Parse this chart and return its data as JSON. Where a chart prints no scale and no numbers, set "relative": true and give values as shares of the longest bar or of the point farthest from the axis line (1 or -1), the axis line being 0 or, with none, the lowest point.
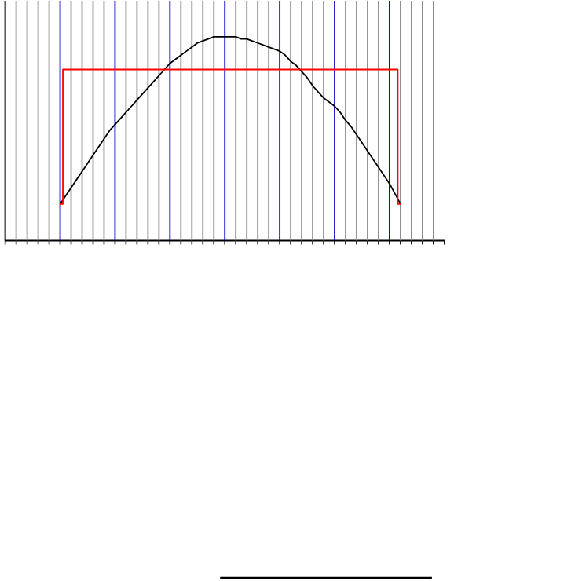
{
  "chart_data": {
    "type": "line",
    "relative": true,
    "grid": "x",
    "categories": [
      null,
      null,
      null,
      null,
      null,
      null,
      null,
      null,
      null,
      null,
      null,
      null,
      null,
      null,
      null,
      null,
      null,
      null,
      null,
      null,
      null,
      null,
      null,
      null,
      null,
      null,
      null,
      null,
      null,
      null,
      null,
      null,
      null,
      null,
      null,
      null,
      null,
      null,
      null,
      null,
      null,
      null,
      null,
      null,
      null,
      null,
      null,
      null,
      null,
      null,
      null,
      null,
      null,
      null,
      null,
      null,
      null,
      null,
      null,
      null,
      null,
      null,
      null
    ],
    "series": [
      {
        "color": "#000000",
        "values": [
          0.18,
          0.22,
          0.26,
          0.3,
          0.34,
          0.38,
          0.42,
          0.46,
          0.5,
          0.54,
          0.57,
          0.6,
          0.63,
          0.66,
          0.69,
          0.72,
          0.75,
          0.78,
          0.81,
          0.84,
          0.87,
          0.89,
          0.91,
          0.93,
          0.95,
          0.97,
          0.98,
          0.99,
          1,
          1,
          1,
          1,
          1,
          0.99,
          0.99,
          0.98,
          0.97,
          0.96,
          0.95,
          0.94,
          0.93,
          0.91,
          0.88,
          0.86,
          0.83,
          0.8,
          0.76,
          0.73,
          0.7,
          0.68,
          0.66,
          0.63,
          0.59,
          0.56,
          0.52,
          0.48,
          0.44,
          0.4,
          0.36,
          0.32,
          0.28,
          0.23,
          0.18
        ]
      },
      {
        "color": "#ff0000",
        "type": "step",
        "values": [
          0.18,
          0.84,
          0.84,
          0.84,
          0.84,
          0.84,
          0.84,
          0.84,
          0.84,
          0.84,
          0.84,
          0.84,
          0.84,
          0.84,
          0.84,
          0.84,
          0.84,
          0.84,
          0.84,
          0.84,
          0.84,
          0.84,
          0.84,
          0.84,
          0.84,
          0.84,
          0.84,
          0.84,
          0.84,
          0.84,
          0.84,
          0.84,
          0.84,
          0.84,
          0.84,
          0.84,
          0.84,
          0.84,
          0.84,
          0.84,
          0.84,
          0.84,
          0.84,
          0.84,
          0.84,
          0.84,
          0.84,
          0.84,
          0.84,
          0.84,
          0.84,
          0.84,
          0.84,
          0.84,
          0.84,
          0.84,
          0.84,
          0.84,
          0.84,
          0.84,
          0.84,
          0.84,
          0.18
        ]
      }
    ]
  }
}
